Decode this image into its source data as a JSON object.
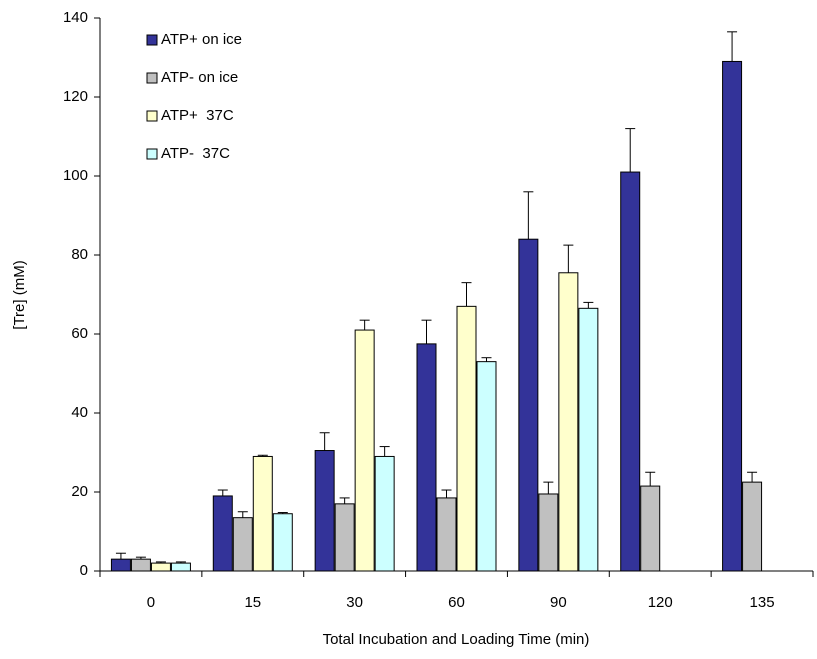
{
  "chart_data": {
    "type": "bar",
    "x_label": "Total Incubation and Loading Time (min)",
    "y_label": "[Tre] (mM)",
    "categories": [
      "0",
      "15",
      "30",
      "60",
      "90",
      "120",
      "135"
    ],
    "series": [
      {
        "name": "ATP+ on ice",
        "color": "#333399",
        "values": [
          3,
          19,
          30.5,
          57.5,
          84,
          101,
          129
        ],
        "errors": [
          1.5,
          1.5,
          4.5,
          6,
          12,
          11,
          7.5
        ]
      },
      {
        "name": "ATP- on ice",
        "color": "#c0c0c0",
        "values": [
          3,
          13.5,
          17,
          18.5,
          19.5,
          21.5,
          22.5
        ],
        "errors": [
          0.5,
          1.5,
          1.5,
          2,
          3,
          3.5,
          2.5
        ]
      },
      {
        "name": "ATP+  37C",
        "color": "#ffffcc",
        "values": [
          2,
          29,
          61,
          67,
          75.5,
          null,
          null
        ],
        "errors": [
          0.3,
          0.3,
          2.5,
          6,
          7,
          null,
          null
        ]
      },
      {
        "name": "ATP-  37C",
        "color": "#ccffff",
        "values": [
          2,
          14.5,
          29,
          53,
          66.5,
          null,
          null
        ],
        "errors": [
          0.3,
          0.3,
          2.5,
          1,
          1.5,
          null,
          null
        ]
      }
    ],
    "ylim": [
      0,
      140
    ],
    "yticks": [
      0,
      20,
      40,
      60,
      80,
      100,
      120,
      140
    ],
    "legend": "upper-left",
    "grid": false
  }
}
